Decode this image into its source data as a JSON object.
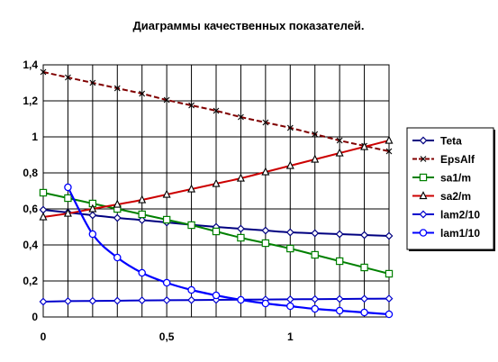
{
  "chart_data": {
    "type": "line",
    "title": "Диаграммы качественных показателей.",
    "xlabel": "",
    "ylabel": "",
    "xlim": [
      0,
      1.4
    ],
    "ylim": [
      0,
      1.4
    ],
    "grid": true,
    "x_ticks": [
      0,
      0.5,
      1
    ],
    "x_tick_labels": [
      "0",
      "0,5",
      "1"
    ],
    "x_grid": [
      0,
      0.1,
      0.2,
      0.3,
      0.4,
      0.5,
      0.6,
      0.7,
      0.8,
      0.9,
      1.0,
      1.1,
      1.2,
      1.3,
      1.4
    ],
    "y_ticks": [
      0,
      0.2,
      0.4,
      0.6,
      0.8,
      1.0,
      1.2,
      1.4
    ],
    "y_tick_labels": [
      "0",
      "0,2",
      "0,4",
      "0,6",
      "0,8",
      "1",
      "1,2",
      "1,4"
    ],
    "legend_position": "right",
    "series": [
      {
        "name": "Teta",
        "color": "#000080",
        "marker": "diamond",
        "x": [
          0,
          0.1,
          0.2,
          0.3,
          0.4,
          0.5,
          0.6,
          0.7,
          0.8,
          0.9,
          1.0,
          1.1,
          1.2,
          1.3,
          1.4
        ],
        "y": [
          0.595,
          0.58,
          0.565,
          0.55,
          0.538,
          0.525,
          0.512,
          0.5,
          0.49,
          0.48,
          0.47,
          0.465,
          0.46,
          0.455,
          0.45
        ]
      },
      {
        "name": "EpsAlf",
        "color": "#800000",
        "marker": "x",
        "x": [
          0,
          0.1,
          0.2,
          0.3,
          0.4,
          0.5,
          0.6,
          0.7,
          0.8,
          0.9,
          1.0,
          1.1,
          1.2,
          1.3,
          1.4
        ],
        "y": [
          1.36,
          1.33,
          1.3,
          1.27,
          1.24,
          1.205,
          1.175,
          1.145,
          1.11,
          1.08,
          1.05,
          1.015,
          0.98,
          0.95,
          0.92
        ]
      },
      {
        "name": "sa1/m",
        "color": "#008000",
        "marker": "square",
        "x": [
          0,
          0.1,
          0.2,
          0.3,
          0.4,
          0.5,
          0.6,
          0.7,
          0.8,
          0.9,
          1.0,
          1.1,
          1.2,
          1.3,
          1.4
        ],
        "y": [
          0.69,
          0.66,
          0.63,
          0.6,
          0.57,
          0.54,
          0.51,
          0.475,
          0.44,
          0.41,
          0.38,
          0.345,
          0.31,
          0.275,
          0.24
        ]
      },
      {
        "name": "sa2/m",
        "color": "#cc0000",
        "marker": "triangle",
        "x": [
          0,
          0.1,
          0.2,
          0.3,
          0.4,
          0.5,
          0.6,
          0.7,
          0.8,
          0.9,
          1.0,
          1.1,
          1.2,
          1.3,
          1.4
        ],
        "y": [
          0.555,
          0.575,
          0.6,
          0.625,
          0.65,
          0.68,
          0.71,
          0.74,
          0.77,
          0.805,
          0.84,
          0.875,
          0.91,
          0.945,
          0.98
        ]
      },
      {
        "name": "lam2/10",
        "color": "#0000cc",
        "marker": "diamond",
        "x": [
          0,
          0.1,
          0.2,
          0.3,
          0.4,
          0.5,
          0.6,
          0.7,
          0.8,
          0.9,
          1.0,
          1.1,
          1.2,
          1.3,
          1.4
        ],
        "y": [
          0.085,
          0.088,
          0.089,
          0.09,
          0.092,
          0.093,
          0.094,
          0.095,
          0.096,
          0.097,
          0.098,
          0.099,
          0.1,
          0.101,
          0.102
        ]
      },
      {
        "name": "lam1/10",
        "color": "#0000ff",
        "marker": "circle",
        "x": [
          0.1,
          0.2,
          0.3,
          0.4,
          0.5,
          0.6,
          0.7,
          0.8,
          0.9,
          1.0,
          1.1,
          1.2,
          1.3,
          1.4
        ],
        "y": [
          0.72,
          0.46,
          0.33,
          0.245,
          0.19,
          0.15,
          0.12,
          0.095,
          0.075,
          0.06,
          0.045,
          0.035,
          0.025,
          0.015
        ]
      }
    ]
  }
}
